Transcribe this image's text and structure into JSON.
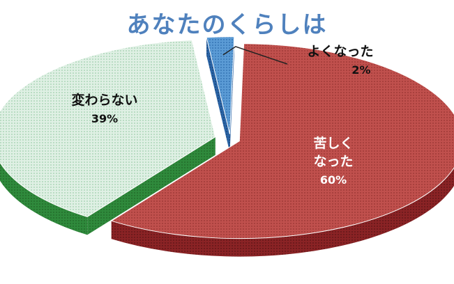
{
  "chart_data": {
    "type": "pie",
    "title": "あなたのくらしは",
    "slices": [
      {
        "name": "変わらない",
        "label_lines": [
          "変わらない"
        ],
        "value": 39,
        "pct_label": "39%",
        "color": "#3c9a49",
        "top_color": "#cfead8"
      },
      {
        "name": "よくなった",
        "label_lines": [
          "よくなった"
        ],
        "value": 2,
        "pct_label": "2%",
        "color": "#2f6fb6",
        "top_color": "#5b9bd5"
      },
      {
        "name": "苦しくなった",
        "label_lines": [
          "苦しく",
          "なった"
        ],
        "value": 60,
        "pct_label": "60%",
        "color": "#a52e31",
        "top_color": "#c0504d"
      }
    ],
    "style": "3d-exploded-pie",
    "title_color": "#4f81bd"
  }
}
